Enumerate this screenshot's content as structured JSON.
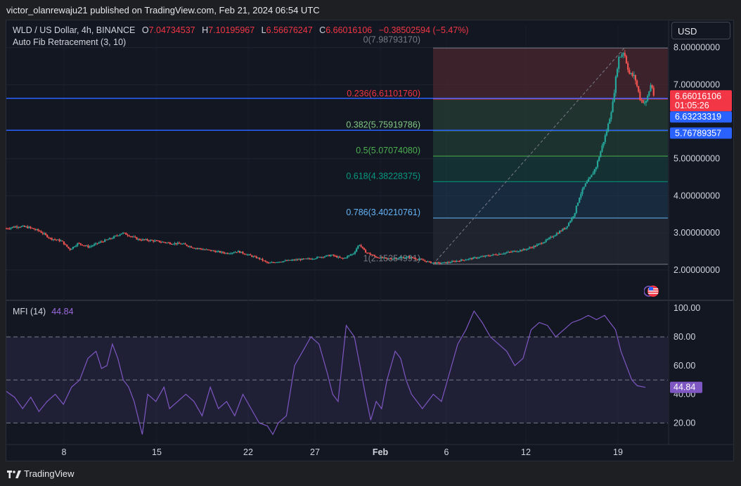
{
  "header": {
    "publisher": "victor_olanrewaju21 published on TradingView.com, Feb 21, 2024 06:54 UTC"
  },
  "legend": {
    "symbol": "WLD / US Dollar, 4h, BINANCE",
    "open_label": "O",
    "open": "7.04734537",
    "high_label": "H",
    "high": "7.10195967",
    "low_label": "L",
    "low": "6.56676247",
    "close_label": "C",
    "close": "6.66016106",
    "change": "−0.38502594 (−5.47%)",
    "indicator": "Auto Fib Retracement (3, 10)"
  },
  "currency": "USD",
  "footer": {
    "brand": "TradingView"
  },
  "colors": {
    "background": "#131722",
    "up": "#26a69a",
    "down": "#ef5350",
    "mfi_line": "#7e57c2",
    "blue_line": "#2962ff",
    "price_tag": "#f23645"
  },
  "chart_data": [
    {
      "type": "line",
      "title": "",
      "ylim": [
        1.2,
        8.6
      ],
      "yticks": [
        "2.00000000",
        "3.00000000",
        "4.00000000",
        "5.00000000",
        "7.00000000",
        "8.00000000"
      ],
      "ytick_values": [
        2,
        3,
        4,
        5,
        7,
        8
      ],
      "xticks": [
        "8",
        "15",
        "22",
        "27",
        "Feb",
        "6",
        "12",
        "19"
      ],
      "fib_levels": [
        {
          "label": "0(7.98793170)",
          "ratio": 0,
          "value": 7.9879317,
          "color": "#787b86"
        },
        {
          "label": "0.236(6.61101760)",
          "ratio": 0.236,
          "value": 6.6110176,
          "color": "#f23645"
        },
        {
          "label": "0.382(5.75919786)",
          "ratio": 0.382,
          "value": 5.75919786,
          "color": "#81c784"
        },
        {
          "label": "0.5(5.07074080)",
          "ratio": 0.5,
          "value": 5.0707408,
          "color": "#4caf50"
        },
        {
          "label": "0.618(4.38228375)",
          "ratio": 0.618,
          "value": 4.38228375,
          "color": "#089981"
        },
        {
          "label": "0.786(3.40210761)",
          "ratio": 0.786,
          "value": 3.40210761,
          "color": "#64b5f6"
        },
        {
          "label": "1(2.15354991)",
          "ratio": 1,
          "value": 2.15354991,
          "color": "#787b86"
        }
      ],
      "horizontal_lines": [
        6.63233319,
        5.76789357
      ],
      "price_tags": [
        {
          "value": "6.66016106",
          "sub": "01:05:26",
          "color": "#f23645"
        },
        {
          "value": "6.63233319",
          "color": "#2962ff"
        },
        {
          "value": "5.76789357",
          "color": "#2962ff"
        }
      ],
      "price_path": [
        [
          0,
          3.12
        ],
        [
          4,
          3.18
        ],
        [
          8,
          3.15
        ],
        [
          12,
          3.05
        ],
        [
          16,
          2.85
        ],
        [
          20,
          2.78
        ],
        [
          23,
          2.55
        ],
        [
          26,
          2.72
        ],
        [
          30,
          2.62
        ],
        [
          34,
          2.75
        ],
        [
          38,
          2.85
        ],
        [
          42,
          3.0
        ],
        [
          44,
          2.95
        ],
        [
          48,
          2.82
        ],
        [
          52,
          2.8
        ],
        [
          56,
          2.76
        ],
        [
          60,
          2.72
        ],
        [
          64,
          2.7
        ],
        [
          68,
          2.6
        ],
        [
          72,
          2.55
        ],
        [
          76,
          2.5
        ],
        [
          80,
          2.45
        ],
        [
          84,
          2.5
        ],
        [
          88,
          2.4
        ],
        [
          92,
          2.3
        ],
        [
          95,
          2.18
        ],
        [
          98,
          2.22
        ],
        [
          102,
          2.25
        ],
        [
          106,
          2.28
        ],
        [
          110,
          2.3
        ],
        [
          114,
          2.35
        ],
        [
          118,
          2.4
        ],
        [
          122,
          2.3
        ],
        [
          126,
          2.45
        ],
        [
          128,
          2.7
        ],
        [
          130,
          2.5
        ],
        [
          134,
          2.35
        ],
        [
          138,
          2.3
        ],
        [
          142,
          2.32
        ],
        [
          146,
          2.35
        ],
        [
          150,
          2.28
        ],
        [
          154,
          2.2
        ],
        [
          157,
          2.18
        ],
        [
          160,
          2.2
        ],
        [
          164,
          2.25
        ],
        [
          168,
          2.3
        ],
        [
          172,
          2.35
        ],
        [
          176,
          2.4
        ],
        [
          180,
          2.45
        ],
        [
          184,
          2.5
        ],
        [
          188,
          2.55
        ],
        [
          192,
          2.65
        ],
        [
          196,
          2.8
        ],
        [
          200,
          3.0
        ],
        [
          203,
          3.15
        ],
        [
          206,
          3.5
        ],
        [
          208,
          4.0
        ],
        [
          210,
          4.3
        ],
        [
          212,
          4.5
        ],
        [
          214,
          4.8
        ],
        [
          216,
          5.3
        ],
        [
          218,
          5.8
        ],
        [
          220,
          6.5
        ],
        [
          222,
          7.7
        ],
        [
          224,
          7.9
        ],
        [
          226,
          7.3
        ],
        [
          228,
          7.2
        ],
        [
          230,
          6.6
        ],
        [
          232,
          6.5
        ],
        [
          234,
          7.05
        ],
        [
          235,
          6.66
        ]
      ],
      "price_x_range": [
        0,
        240
      ]
    },
    {
      "type": "line",
      "title": "MFI (14)",
      "current_value": "44.84",
      "ylim": [
        5,
        105
      ],
      "yticks": [
        "100.00",
        "80.00",
        "60.00",
        "40.00",
        "20.00"
      ],
      "ytick_values": [
        100,
        80,
        60,
        40,
        20
      ],
      "band": [
        20,
        80
      ],
      "mfi_path": [
        [
          0,
          42
        ],
        [
          3,
          38
        ],
        [
          6,
          30
        ],
        [
          9,
          38
        ],
        [
          12,
          28
        ],
        [
          15,
          35
        ],
        [
          18,
          40
        ],
        [
          21,
          33
        ],
        [
          24,
          45
        ],
        [
          27,
          50
        ],
        [
          30,
          65
        ],
        [
          33,
          70
        ],
        [
          35,
          58
        ],
        [
          37,
          60
        ],
        [
          39,
          75
        ],
        [
          41,
          65
        ],
        [
          43,
          50
        ],
        [
          45,
          45
        ],
        [
          47,
          35
        ],
        [
          50,
          12
        ],
        [
          52,
          40
        ],
        [
          55,
          35
        ],
        [
          58,
          45
        ],
        [
          60,
          30
        ],
        [
          63,
          35
        ],
        [
          66,
          40
        ],
        [
          69,
          35
        ],
        [
          72,
          25
        ],
        [
          75,
          45
        ],
        [
          78,
          30
        ],
        [
          81,
          35
        ],
        [
          84,
          25
        ],
        [
          87,
          40
        ],
        [
          90,
          30
        ],
        [
          93,
          20
        ],
        [
          96,
          18
        ],
        [
          98,
          12
        ],
        [
          100,
          20
        ],
        [
          103,
          25
        ],
        [
          106,
          60
        ],
        [
          109,
          70
        ],
        [
          112,
          80
        ],
        [
          115,
          75
        ],
        [
          118,
          55
        ],
        [
          120,
          40
        ],
        [
          122,
          35
        ],
        [
          125,
          88
        ],
        [
          128,
          80
        ],
        [
          130,
          60
        ],
        [
          132,
          40
        ],
        [
          134,
          22
        ],
        [
          136,
          35
        ],
        [
          138,
          30
        ],
        [
          140,
          50
        ],
        [
          143,
          70
        ],
        [
          145,
          65
        ],
        [
          147,
          50
        ],
        [
          149,
          40
        ],
        [
          151,
          35
        ],
        [
          153,
          30
        ],
        [
          155,
          35
        ],
        [
          157,
          40
        ],
        [
          160,
          35
        ],
        [
          163,
          55
        ],
        [
          166,
          75
        ],
        [
          169,
          85
        ],
        [
          172,
          98
        ],
        [
          175,
          90
        ],
        [
          178,
          80
        ],
        [
          181,
          75
        ],
        [
          184,
          70
        ],
        [
          187,
          60
        ],
        [
          190,
          65
        ],
        [
          193,
          85
        ],
        [
          196,
          90
        ],
        [
          199,
          88
        ],
        [
          202,
          80
        ],
        [
          205,
          85
        ],
        [
          208,
          90
        ],
        [
          211,
          92
        ],
        [
          214,
          95
        ],
        [
          217,
          92
        ],
        [
          220,
          95
        ],
        [
          222,
          90
        ],
        [
          224,
          85
        ],
        [
          226,
          70
        ],
        [
          228,
          60
        ],
        [
          230,
          50
        ],
        [
          232,
          46
        ],
        [
          235,
          44.84
        ]
      ]
    }
  ]
}
